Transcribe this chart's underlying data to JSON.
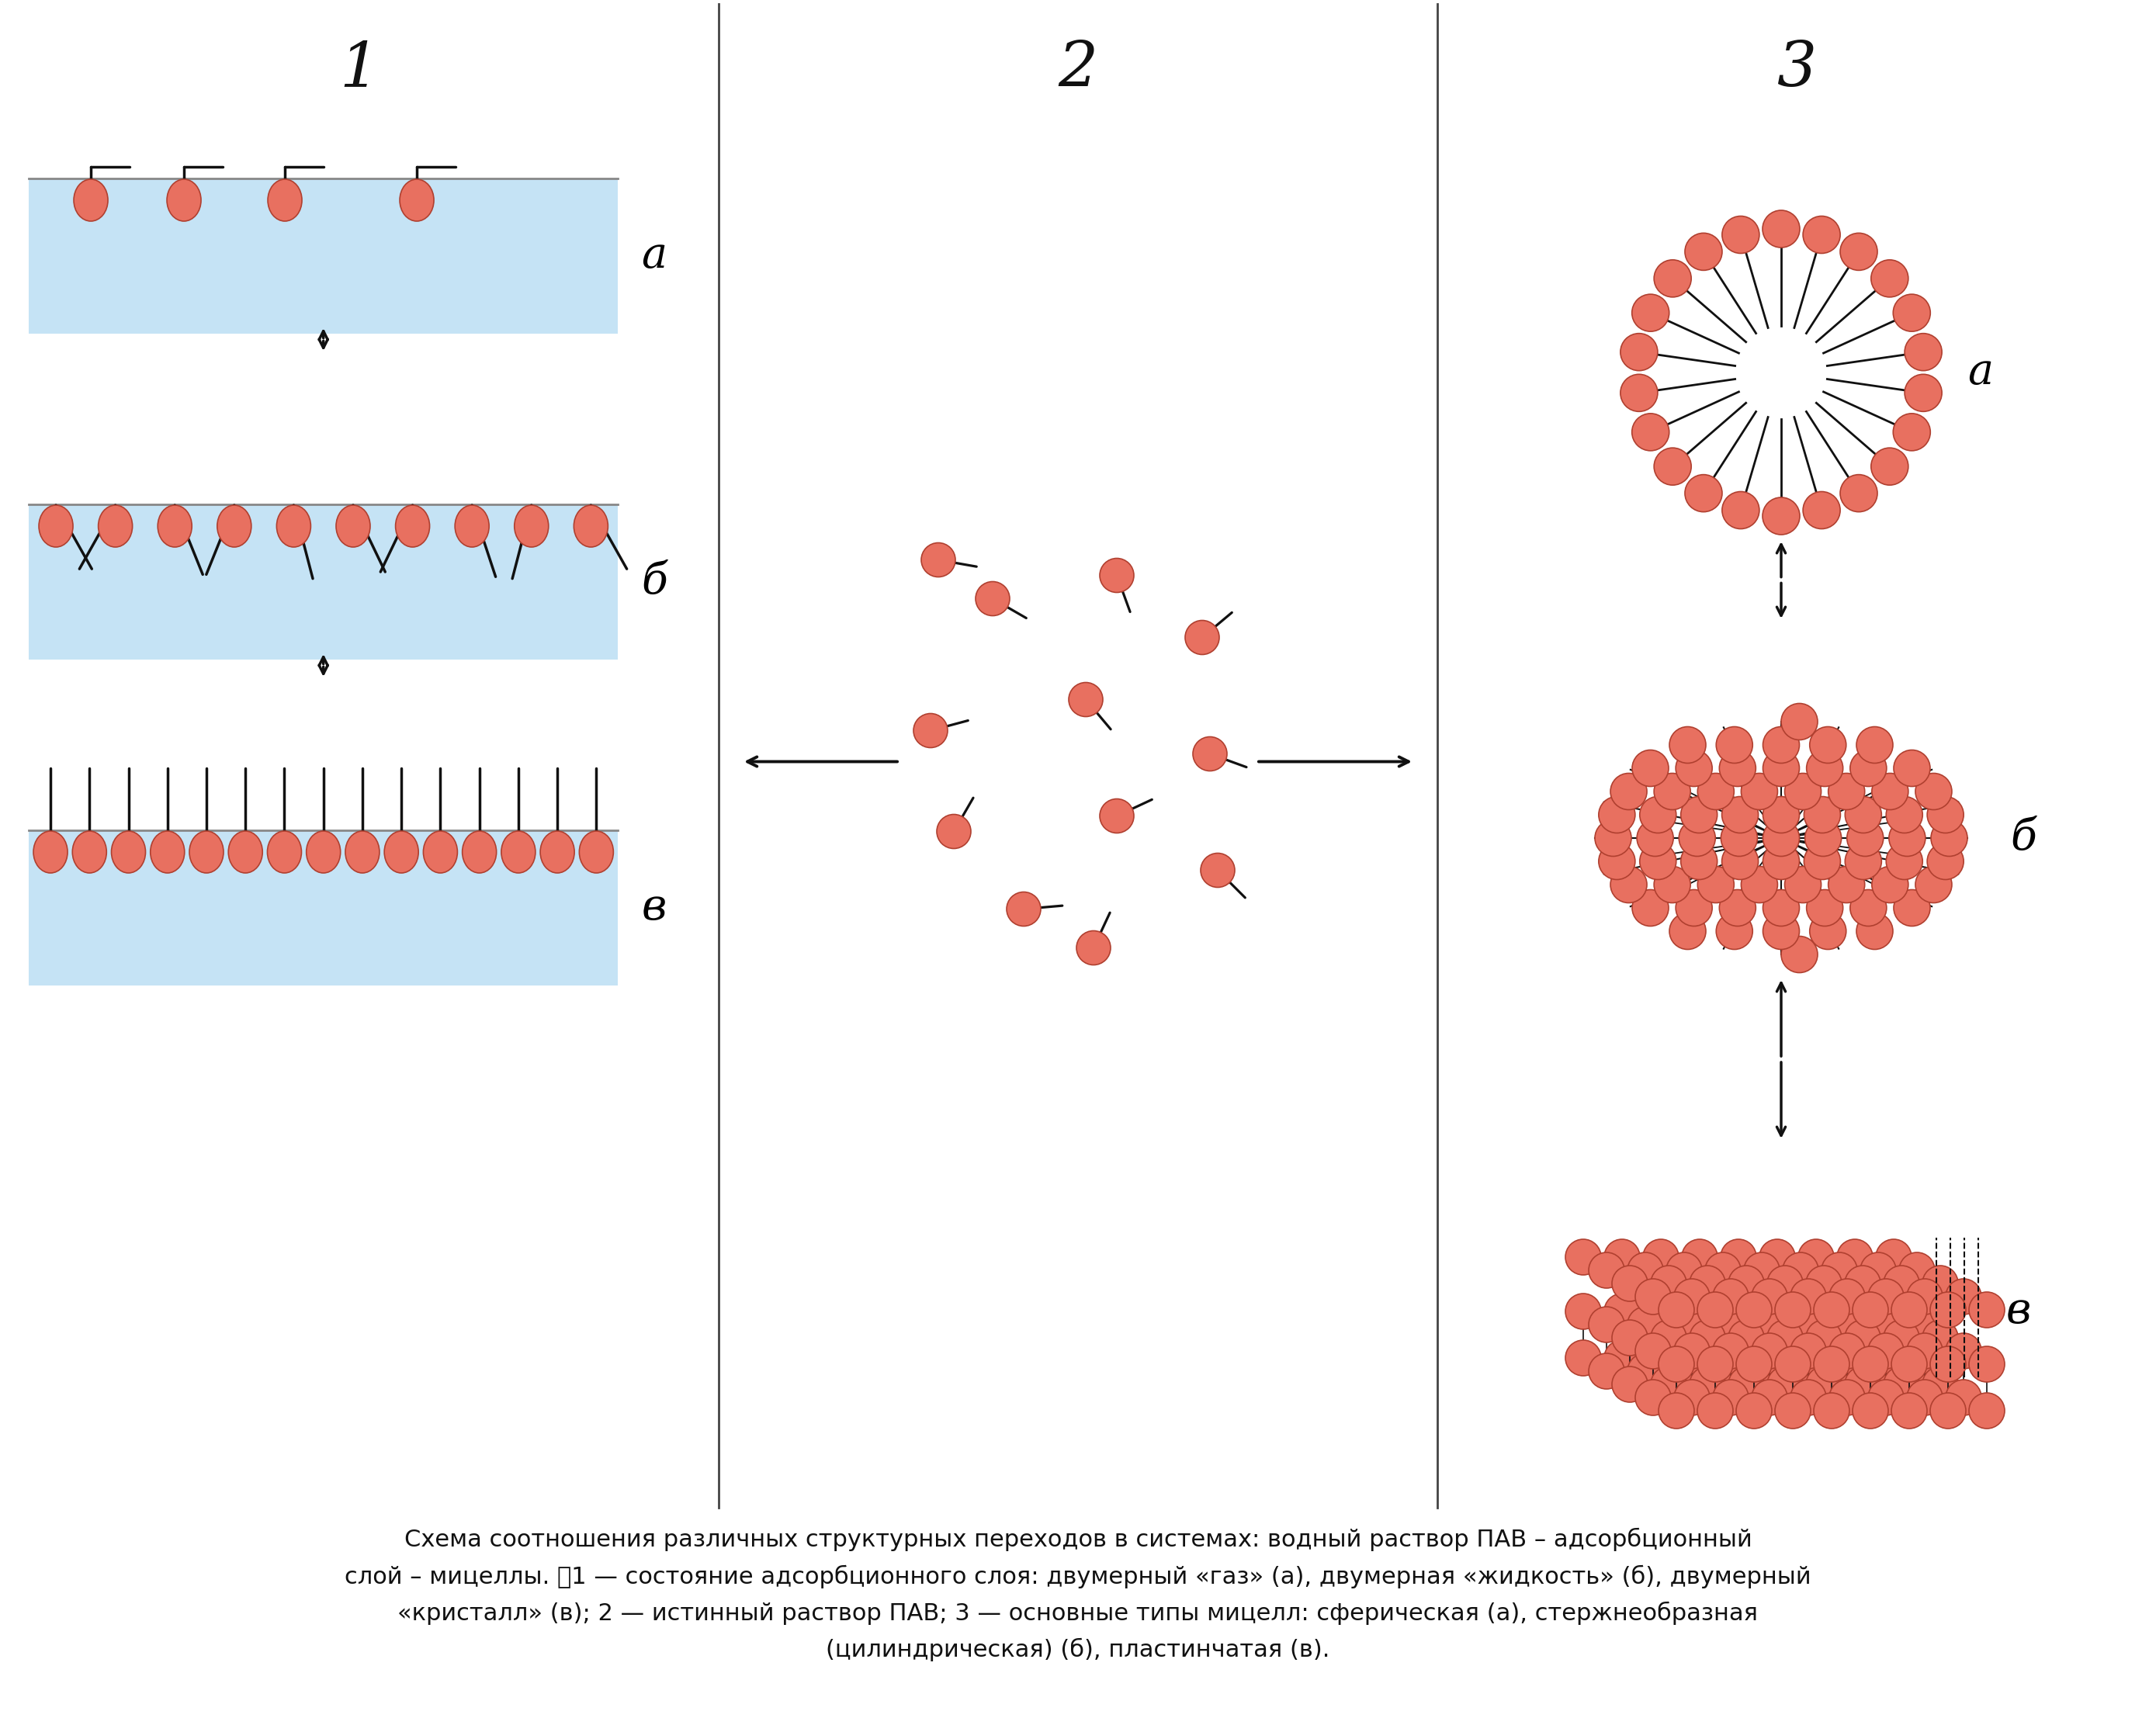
{
  "bg_color": "#ffffff",
  "water_color": "#c5e3f5",
  "head_color": "#e87060",
  "head_edge": "#b04030",
  "head_color2": "#e8806a",
  "line_color": "#111111",
  "divider_color": "#444444",
  "col1_label": "1",
  "col2_label": "2",
  "col3_label": "3",
  "label_a": "a",
  "label_b": "б",
  "label_v": "в",
  "caption_l1": "Схема соотношения различных структурных переходов в системах: водный раствор ПАВ – адсорбционный",
  "caption_l2": "слой – мицеллы. \u00001 — состояние адсорбционного слоя: двумерный «газ» (а), двумерная «жидкость» (б), двумерный",
  "caption_l3": "«кристалл» (в); 2 — истинный раствор ПАВ; 3 — основные типы мицелл: сферическая (а), стержнеобразная",
  "caption_l4": "(цилиндрическая) (б), пластинчатая (в)."
}
